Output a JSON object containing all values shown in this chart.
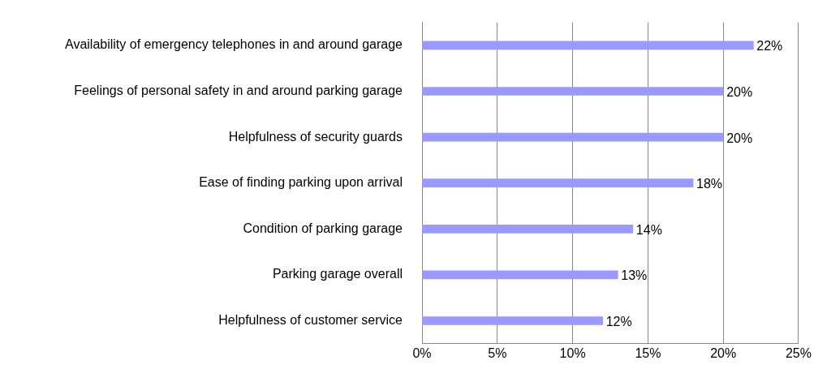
{
  "chart_data": {
    "type": "bar",
    "orientation": "horizontal",
    "categories": [
      "Availability of emergency telephones in and around garage",
      "Feelings of personal safety in and around parking garage",
      "Helpfulness of security guards",
      "Ease of finding parking upon arrival",
      "Condition of parking garage",
      "Parking garage overall",
      "Helpfulness of customer service"
    ],
    "values": [
      22,
      20,
      20,
      18,
      14,
      13,
      12
    ],
    "value_labels": [
      "22%",
      "20%",
      "20%",
      "18%",
      "14%",
      "13%",
      "12%"
    ],
    "color": "#9999ff",
    "xlim": [
      0,
      25
    ],
    "xticks": [
      {
        "value": 0,
        "label": "0%"
      },
      {
        "value": 5,
        "label": "5%"
      },
      {
        "value": 10,
        "label": "10%"
      },
      {
        "value": 15,
        "label": "15%"
      },
      {
        "value": 20,
        "label": "20%"
      },
      {
        "value": 25,
        "label": "25%"
      }
    ],
    "grid": "x"
  }
}
